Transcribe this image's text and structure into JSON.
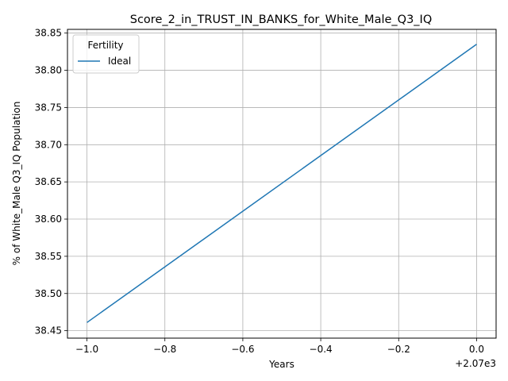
{
  "chart_data": {
    "type": "line",
    "title": "Score_2_in_TRUST_IN_BANKS_for_White_Male_Q3_IQ",
    "xlabel": "Years",
    "ylabel": "% of White_Male Q3_IQ Population",
    "x_offset_label": "+2.07e3",
    "x_ticks": [
      -1.0,
      -0.8,
      -0.6,
      -0.4,
      -0.2,
      0.0
    ],
    "x_tick_labels": [
      "−1.0",
      "−0.8",
      "−0.6",
      "−0.4",
      "−0.2",
      "0.0"
    ],
    "y_ticks": [
      38.45,
      38.5,
      38.55,
      38.6,
      38.65,
      38.7,
      38.75,
      38.8,
      38.85
    ],
    "y_tick_labels": [
      "38.45",
      "38.50",
      "38.55",
      "38.60",
      "38.65",
      "38.70",
      "38.75",
      "38.80",
      "38.85"
    ],
    "xlim": [
      2069.0,
      2070.0
    ],
    "ylim": [
      38.44,
      38.855
    ],
    "grid": true,
    "legend": {
      "title": "Fertility",
      "position": "top-left"
    },
    "series": [
      {
        "name": "Ideal",
        "color": "#1f77b4",
        "x": [
          2069,
          2070
        ],
        "y": [
          38.461,
          38.835
        ]
      }
    ]
  }
}
